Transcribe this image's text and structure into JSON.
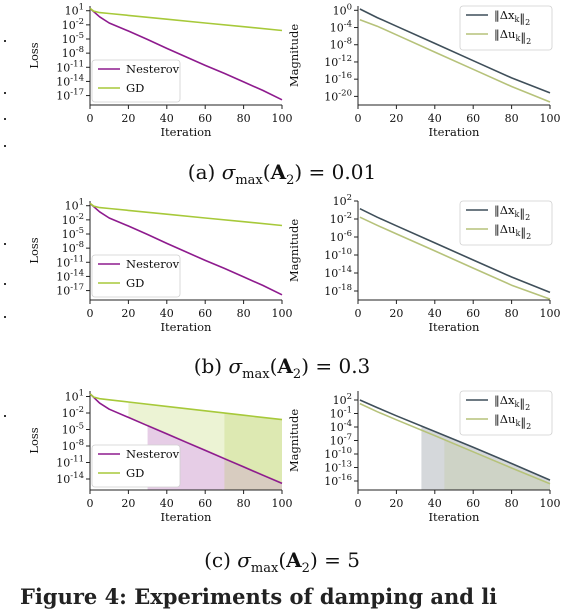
{
  "colors": {
    "nesterov": "#8e1b8e",
    "gd": "#a7c93a",
    "dx": "#3f4f5a",
    "du": "#b6c27a"
  },
  "captions": [
    {
      "label": "(a)",
      "sigma": "σ",
      "sub": "max",
      "paren_open": "(",
      "bold": "A",
      "idx": "2",
      "rest": ") = 0.01"
    },
    {
      "label": "(b)",
      "sigma": "σ",
      "sub": "max",
      "paren_open": "(",
      "bold": "A",
      "idx": "2",
      "rest": ") = 0.3"
    },
    {
      "label": "(c)",
      "sigma": "σ",
      "sub": "max",
      "paren_open": "(",
      "bold": "A",
      "idx": "2",
      "rest": ") = 5"
    }
  ],
  "footer_text": "Figure 4: Experiments of damping and li",
  "chart_data": [
    {
      "type": "line",
      "panel": "a-loss",
      "log_y": true,
      "xlabel": "Iteration",
      "ylabel": "Loss",
      "xlim": [
        0,
        100
      ],
      "ylim_exp": [
        -19,
        2
      ],
      "xticks": [
        0,
        20,
        40,
        60,
        80,
        100
      ],
      "yticks": [
        {
          "exp": 1,
          "label": "10^1"
        },
        {
          "exp": -2,
          "label": "10^-2"
        },
        {
          "exp": -5,
          "label": "10^-5"
        },
        {
          "exp": -8,
          "label": "10^-8"
        },
        {
          "exp": -11,
          "label": "10^-11"
        },
        {
          "exp": -14,
          "label": "10^-14"
        },
        {
          "exp": -17,
          "label": "10^-17"
        }
      ],
      "legend": "bottom-left",
      "series": [
        {
          "name": "Nesterov",
          "color_key": "nesterov",
          "x": [
            0,
            5,
            10,
            20,
            30,
            40,
            50,
            60,
            70,
            80,
            90,
            100
          ],
          "y_exp": [
            1.5,
            -0.3,
            -1.6,
            -3.3,
            -5.1,
            -7.0,
            -8.8,
            -10.6,
            -12.3,
            -14.1,
            -15.9,
            -17.9
          ]
        },
        {
          "name": "GD",
          "color_key": "gd",
          "x": [
            0,
            2,
            5,
            10,
            20,
            40,
            60,
            80,
            100
          ],
          "y_exp": [
            1.5,
            0.9,
            0.6,
            0.4,
            0.0,
            -0.8,
            -1.6,
            -2.4,
            -3.2
          ]
        }
      ]
    },
    {
      "type": "line",
      "panel": "a-mag",
      "log_y": true,
      "xlabel": "Iteration",
      "ylabel": "Magnitude",
      "xlim": [
        0,
        100
      ],
      "ylim_exp": [
        -22,
        1
      ],
      "xticks": [
        0,
        20,
        40,
        60,
        80,
        100
      ],
      "yticks": [
        {
          "exp": 0,
          "label": "10^0"
        },
        {
          "exp": -4,
          "label": "10^-4"
        },
        {
          "exp": -8,
          "label": "10^-8"
        },
        {
          "exp": -12,
          "label": "10^-12"
        },
        {
          "exp": -16,
          "label": "10^-16"
        },
        {
          "exp": -20,
          "label": "10^-20"
        }
      ],
      "legend": "top-right",
      "series": [
        {
          "name": "‖Δx_k‖_2",
          "color_key": "dx",
          "x": [
            1,
            10,
            20,
            40,
            60,
            80,
            100
          ],
          "y_exp": [
            0.3,
            -1.7,
            -3.7,
            -7.7,
            -11.7,
            -15.7,
            -19.2
          ]
        },
        {
          "name": "‖Δu_k‖_2",
          "color_key": "du",
          "x": [
            1,
            10,
            20,
            40,
            60,
            80,
            100
          ],
          "y_exp": [
            -2.2,
            -3.7,
            -5.7,
            -9.7,
            -13.7,
            -17.7,
            -21.3
          ]
        }
      ]
    },
    {
      "type": "line",
      "panel": "b-loss",
      "log_y": true,
      "xlabel": "Iteration",
      "ylabel": "Loss",
      "xlim": [
        0,
        100
      ],
      "ylim_exp": [
        -19,
        2
      ],
      "xticks": [
        0,
        20,
        40,
        60,
        80,
        100
      ],
      "yticks": [
        {
          "exp": 1,
          "label": "10^1"
        },
        {
          "exp": -2,
          "label": "10^-2"
        },
        {
          "exp": -5,
          "label": "10^-5"
        },
        {
          "exp": -8,
          "label": "10^-8"
        },
        {
          "exp": -11,
          "label": "10^-11"
        },
        {
          "exp": -14,
          "label": "10^-14"
        },
        {
          "exp": -17,
          "label": "10^-17"
        }
      ],
      "legend": "bottom-left",
      "series": [
        {
          "name": "Nesterov",
          "color_key": "nesterov",
          "x": [
            0,
            5,
            10,
            20,
            30,
            40,
            50,
            60,
            70,
            80,
            90,
            100
          ],
          "y_exp": [
            1.5,
            -0.3,
            -1.6,
            -3.3,
            -5.1,
            -7.0,
            -8.8,
            -10.6,
            -12.3,
            -14.1,
            -15.9,
            -17.9
          ]
        },
        {
          "name": "GD",
          "color_key": "gd",
          "x": [
            0,
            2,
            5,
            10,
            20,
            40,
            60,
            80,
            100
          ],
          "y_exp": [
            1.5,
            0.9,
            0.6,
            0.4,
            0.0,
            -0.8,
            -1.6,
            -2.4,
            -3.2
          ]
        }
      ]
    },
    {
      "type": "line",
      "panel": "b-mag",
      "log_y": true,
      "xlabel": "Iteration",
      "ylabel": "Magnitude",
      "xlim": [
        0,
        100
      ],
      "ylim_exp": [
        -20,
        2
      ],
      "xticks": [
        0,
        20,
        40,
        60,
        80,
        100
      ],
      "yticks": [
        {
          "exp": 2,
          "label": "10^2"
        },
        {
          "exp": -2,
          "label": "10^-2"
        },
        {
          "exp": -6,
          "label": "10^-6"
        },
        {
          "exp": -10,
          "label": "10^-10"
        },
        {
          "exp": -14,
          "label": "10^-14"
        },
        {
          "exp": -18,
          "label": "10^-18"
        }
      ],
      "legend": "top-right",
      "series": [
        {
          "name": "‖Δx_k‖_2",
          "color_key": "dx",
          "x": [
            1,
            10,
            20,
            40,
            60,
            80,
            100
          ],
          "y_exp": [
            0.3,
            -1.6,
            -3.5,
            -7.3,
            -11.1,
            -14.9,
            -18.3
          ]
        },
        {
          "name": "‖Δu_k‖_2",
          "color_key": "du",
          "x": [
            1,
            10,
            20,
            40,
            60,
            80,
            100
          ],
          "y_exp": [
            -1.6,
            -3.4,
            -5.3,
            -9.1,
            -12.9,
            -16.7,
            -19.8
          ]
        }
      ]
    },
    {
      "type": "line",
      "panel": "c-loss",
      "log_y": true,
      "xlabel": "Iteration",
      "ylabel": "Loss",
      "xlim": [
        0,
        100
      ],
      "ylim_exp": [
        -16,
        2
      ],
      "xticks": [
        0,
        20,
        40,
        60,
        80,
        100
      ],
      "yticks": [
        {
          "exp": 1,
          "label": "10^1"
        },
        {
          "exp": -2,
          "label": "10^-2"
        },
        {
          "exp": -5,
          "label": "10^-5"
        },
        {
          "exp": -8,
          "label": "10^-8"
        },
        {
          "exp": -11,
          "label": "10^-11"
        },
        {
          "exp": -14,
          "label": "10^-14"
        }
      ],
      "legend": "bottom-left",
      "series": [
        {
          "name": "Nesterov",
          "color_key": "nesterov",
          "x": [
            0,
            5,
            10,
            20,
            30,
            40,
            50,
            60,
            70,
            80,
            90,
            100
          ],
          "y_exp": [
            1.5,
            -0.2,
            -1.3,
            -2.8,
            -4.3,
            -5.8,
            -7.3,
            -8.8,
            -10.3,
            -11.8,
            -13.3,
            -14.8
          ]
        },
        {
          "name": "GD",
          "color_key": "gd",
          "x": [
            0,
            2,
            5,
            10,
            20,
            40,
            60,
            80,
            100
          ],
          "y_exp": [
            1.5,
            0.9,
            0.6,
            0.4,
            0.0,
            -0.8,
            -1.6,
            -2.4,
            -3.2
          ]
        }
      ],
      "bands": [
        {
          "color_key": "nesterov",
          "x": [
            30,
            40,
            50,
            60,
            70,
            80,
            90,
            100
          ],
          "upper_exp": [
            -4.1,
            -5.6,
            -7.1,
            -8.6,
            -10.1,
            -11.6,
            -13.1,
            -14.6
          ],
          "lower_exp": [
            -16,
            -16,
            -16,
            -16,
            -16,
            -16,
            -16,
            -16
          ]
        },
        {
          "color_key": "gd",
          "x": [
            70,
            80,
            90,
            100
          ],
          "upper_exp": [
            -2.0,
            -2.4,
            -2.8,
            -3.2
          ],
          "lower_exp": [
            -16,
            -16,
            -16,
            -16
          ]
        },
        {
          "color_key": "gd",
          "x": [
            20,
            40,
            60,
            80,
            100
          ],
          "upper_exp": [
            0.0,
            -0.8,
            -1.6,
            -2.4,
            -3.2
          ],
          "lower_exp": [
            -2.8,
            -5.8,
            -8.8,
            -11.8,
            -14.8
          ]
        }
      ]
    },
    {
      "type": "line",
      "panel": "c-mag",
      "log_y": true,
      "xlabel": "Iteration",
      "ylabel": "Magnitude",
      "xlim": [
        0,
        100
      ],
      "ylim_exp": [
        -18,
        4
      ],
      "xticks": [
        0,
        20,
        40,
        60,
        80,
        100
      ],
      "yticks": [
        {
          "exp": 2,
          "label": "10^2"
        },
        {
          "exp": -1,
          "label": "10^-1"
        },
        {
          "exp": -4,
          "label": "10^-4"
        },
        {
          "exp": -7,
          "label": "10^-7"
        },
        {
          "exp": -10,
          "label": "10^-10"
        },
        {
          "exp": -13,
          "label": "10^-13"
        },
        {
          "exp": -16,
          "label": "10^-16"
        }
      ],
      "legend": "top-right",
      "series": [
        {
          "name": "‖Δx_k‖_2",
          "color_key": "dx",
          "x": [
            1,
            10,
            20,
            40,
            60,
            80,
            100
          ],
          "y_exp": [
            2.0,
            0.3,
            -1.5,
            -5.0,
            -8.5,
            -12.1,
            -15.8
          ]
        },
        {
          "name": "‖Δu_k‖_2",
          "color_key": "du",
          "x": [
            1,
            10,
            20,
            40,
            60,
            80,
            100
          ],
          "y_exp": [
            1.2,
            -0.6,
            -2.4,
            -5.9,
            -9.5,
            -13.1,
            -16.6
          ]
        }
      ],
      "bands": [
        {
          "color_key": "dx",
          "x": [
            33,
            40,
            60,
            80,
            100
          ],
          "upper_exp": [
            -3.6,
            -4.9,
            -8.4,
            -12.0,
            -15.6
          ],
          "lower_exp": [
            -18,
            -18,
            -18,
            -18,
            -18
          ]
        },
        {
          "color_key": "du",
          "x": [
            45,
            60,
            80,
            100
          ],
          "upper_exp": [
            -6.9,
            -9.5,
            -13.1,
            -16.6
          ],
          "lower_exp": [
            -18,
            -18,
            -18,
            -18
          ]
        }
      ]
    }
  ]
}
